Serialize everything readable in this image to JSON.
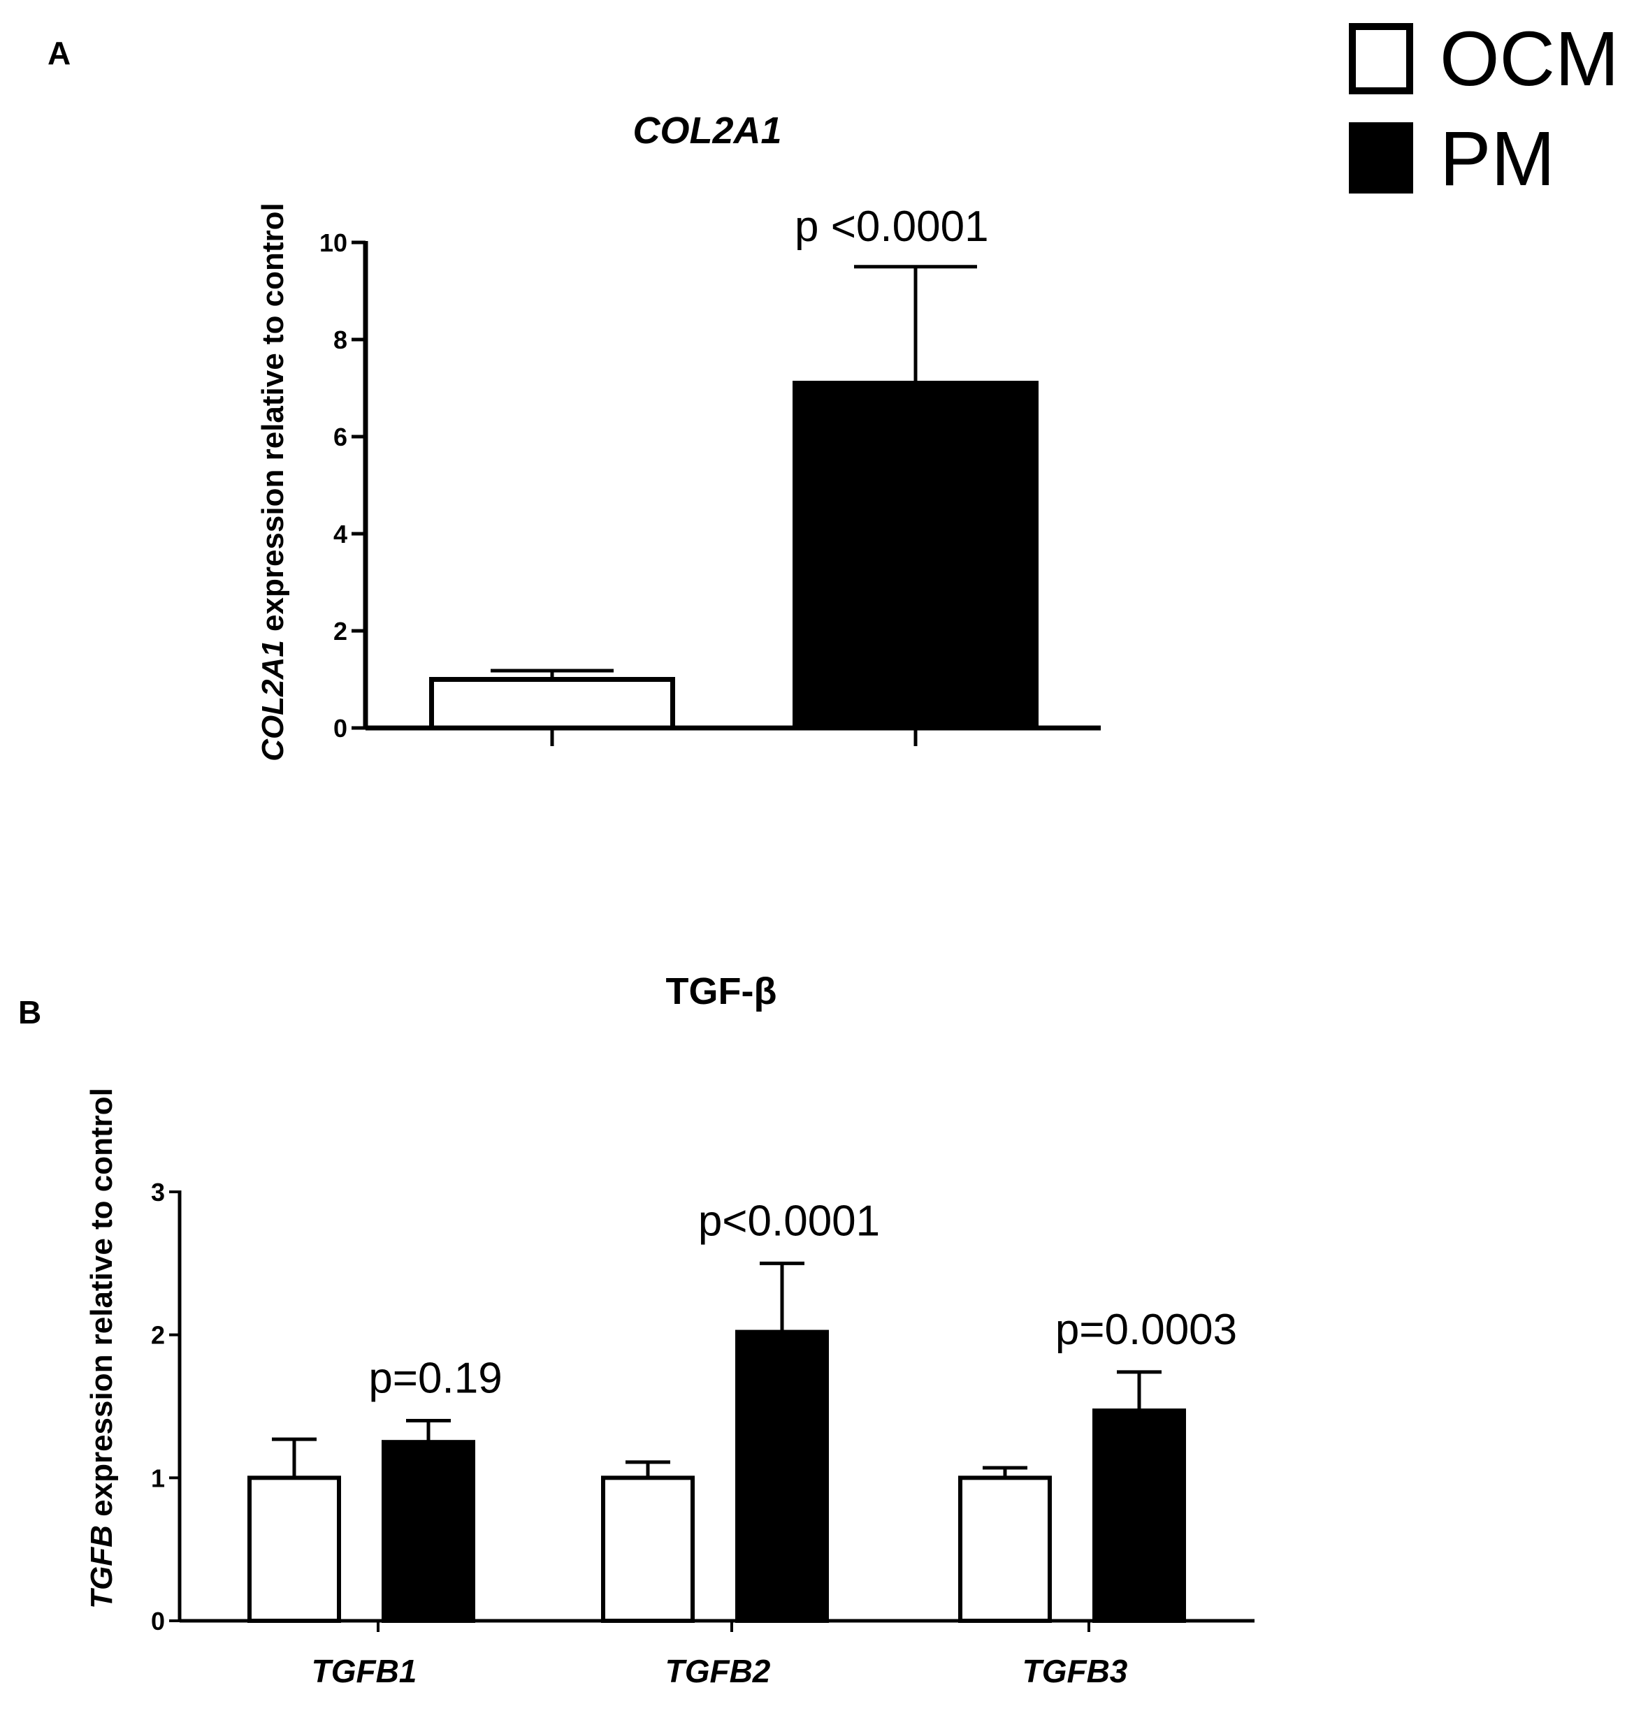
{
  "legend": {
    "items": [
      {
        "label": "OCM",
        "fill": "#ffffff",
        "stroke": "#000000"
      },
      {
        "label": "PM",
        "fill": "#000000",
        "stroke": "#000000"
      }
    ]
  },
  "chart_data": [
    {
      "panel": "A",
      "type": "bar",
      "title": "COL2A1",
      "title_italic": true,
      "ylabel_italic_part": "COL2A1",
      "ylabel_rest": " expression relative to control",
      "ylim": [
        0,
        10
      ],
      "yticks": [
        "0",
        "2",
        "4",
        "6",
        "8",
        "10"
      ],
      "categories": [
        ""
      ],
      "series": [
        {
          "name": "OCM",
          "values": [
            1.0
          ],
          "errors": [
            0.18
          ]
        },
        {
          "name": "PM",
          "values": [
            7.1
          ],
          "errors": [
            2.4
          ]
        }
      ],
      "annotations": [
        "p  <0.0001"
      ],
      "grid": false
    },
    {
      "panel": "B",
      "type": "bar",
      "title": "TGF-β",
      "title_italic": false,
      "ylabel_italic_part": "TGFB",
      "ylabel_rest": " expression relative to control",
      "ylim": [
        0,
        3
      ],
      "yticks": [
        "0",
        "1",
        "2",
        "3"
      ],
      "categories": [
        "TGFB1",
        "TGFB2",
        "TGFB3"
      ],
      "series": [
        {
          "name": "OCM",
          "values": [
            1.0,
            1.0,
            1.0
          ],
          "errors": [
            0.27,
            0.11,
            0.07
          ]
        },
        {
          "name": "PM",
          "values": [
            1.25,
            2.02,
            1.47
          ],
          "errors": [
            0.15,
            0.48,
            0.27
          ]
        }
      ],
      "annotations": [
        "p=0.19",
        "p<0.0001",
        "p=0.0003"
      ],
      "grid": false
    }
  ]
}
